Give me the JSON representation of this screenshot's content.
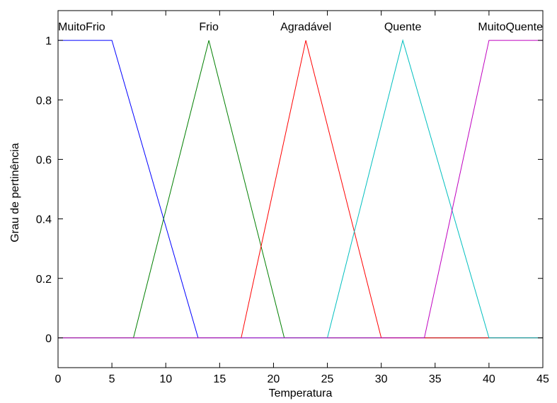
{
  "chart_data": {
    "type": "line",
    "title": "",
    "xlabel": "Temperatura",
    "ylabel": "Grau de pertinência",
    "xlim": [
      0,
      45
    ],
    "ylim": [
      -0.1,
      1.1
    ],
    "xticks": [
      0,
      5,
      10,
      15,
      20,
      25,
      30,
      35,
      40,
      45
    ],
    "yticks": [
      0,
      0.2,
      0.4,
      0.6,
      0.8,
      1
    ],
    "xtick_labels": [
      "0",
      "5",
      "10",
      "15",
      "20",
      "25",
      "30",
      "35",
      "40",
      "45"
    ],
    "ytick_labels": [
      "0",
      "0.2",
      "0.4",
      "0.6",
      "0.8",
      "1"
    ],
    "grid": false,
    "series": [
      {
        "name": "MuitoFrio",
        "color": "#0000ff",
        "x": [
          0,
          5,
          13,
          45
        ],
        "y": [
          1,
          1,
          0,
          0
        ]
      },
      {
        "name": "Frio",
        "color": "#007f00",
        "x": [
          0,
          7,
          14,
          21,
          45
        ],
        "y": [
          0,
          0,
          1,
          0,
          0
        ]
      },
      {
        "name": "Agradável",
        "color": "#ff0000",
        "x": [
          0,
          17,
          23,
          30,
          45
        ],
        "y": [
          0,
          0,
          1,
          0,
          0
        ]
      },
      {
        "name": "Quente",
        "color": "#00bfbf",
        "x": [
          0,
          25,
          32,
          40,
          45
        ],
        "y": [
          0,
          0,
          1,
          0,
          0
        ]
      },
      {
        "name": "MuitoQuente",
        "color": "#bf00bf",
        "x": [
          0,
          34,
          40,
          45
        ],
        "y": [
          0,
          0,
          1,
          1
        ]
      }
    ]
  }
}
